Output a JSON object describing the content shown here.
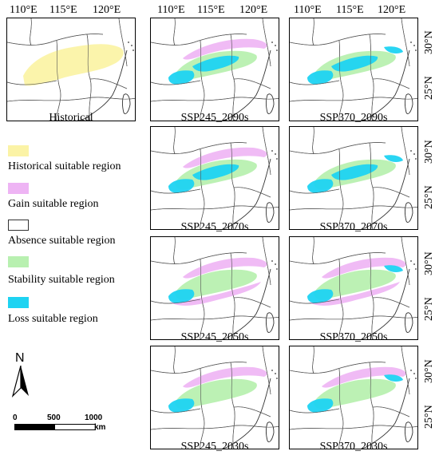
{
  "panels": [
    {
      "id": "historical",
      "label": "Historical",
      "scenario": "historical"
    },
    {
      "id": "ssp245-2090",
      "label": "SSP245_2090s",
      "scenario": "ssp245"
    },
    {
      "id": "ssp370-2090",
      "label": "SSP370_2090s",
      "scenario": "ssp370"
    },
    {
      "id": "ssp245-2070",
      "label": "SSP245_2070s",
      "scenario": "ssp245"
    },
    {
      "id": "ssp370-2070",
      "label": "SSP370_2070s",
      "scenario": "ssp370"
    },
    {
      "id": "ssp245-2050",
      "label": "SSP245_2050s",
      "scenario": "ssp245"
    },
    {
      "id": "ssp370-2050",
      "label": "SSP370_2050s",
      "scenario": "ssp370"
    },
    {
      "id": "ssp245-2030",
      "label": "SSP245_2030s",
      "scenario": "ssp245"
    },
    {
      "id": "ssp370-2030",
      "label": "SSP370_2030s",
      "scenario": "ssp370"
    }
  ],
  "axes": {
    "lon_ticks": [
      "110°E",
      "115°E",
      "120°E"
    ],
    "lat_ticks": [
      "30°N",
      "25°N"
    ]
  },
  "legend": {
    "items": [
      {
        "label": "Historical suitable region",
        "color": "#fbf3a6"
      },
      {
        "label": "Gain suitable region",
        "color": "#eeb4f4"
      },
      {
        "label": "Absence suitable region",
        "color": "#ffffff"
      },
      {
        "label": "Stability suitable region",
        "color": "#b8f0b0"
      },
      {
        "label": "Loss suitable region",
        "color": "#1ed3f2"
      }
    ]
  },
  "north_arrow": {
    "label": "N",
    "icon": "north-arrow-icon"
  },
  "scale_bar": {
    "ticks": [
      "0",
      "500",
      "1000"
    ],
    "unit": "km"
  },
  "colors": {
    "historical": "#fbf3a6",
    "gain": "#eeb4f4",
    "stability": "#b8f0b0",
    "loss": "#1ed3f2",
    "border": "#555555"
  }
}
